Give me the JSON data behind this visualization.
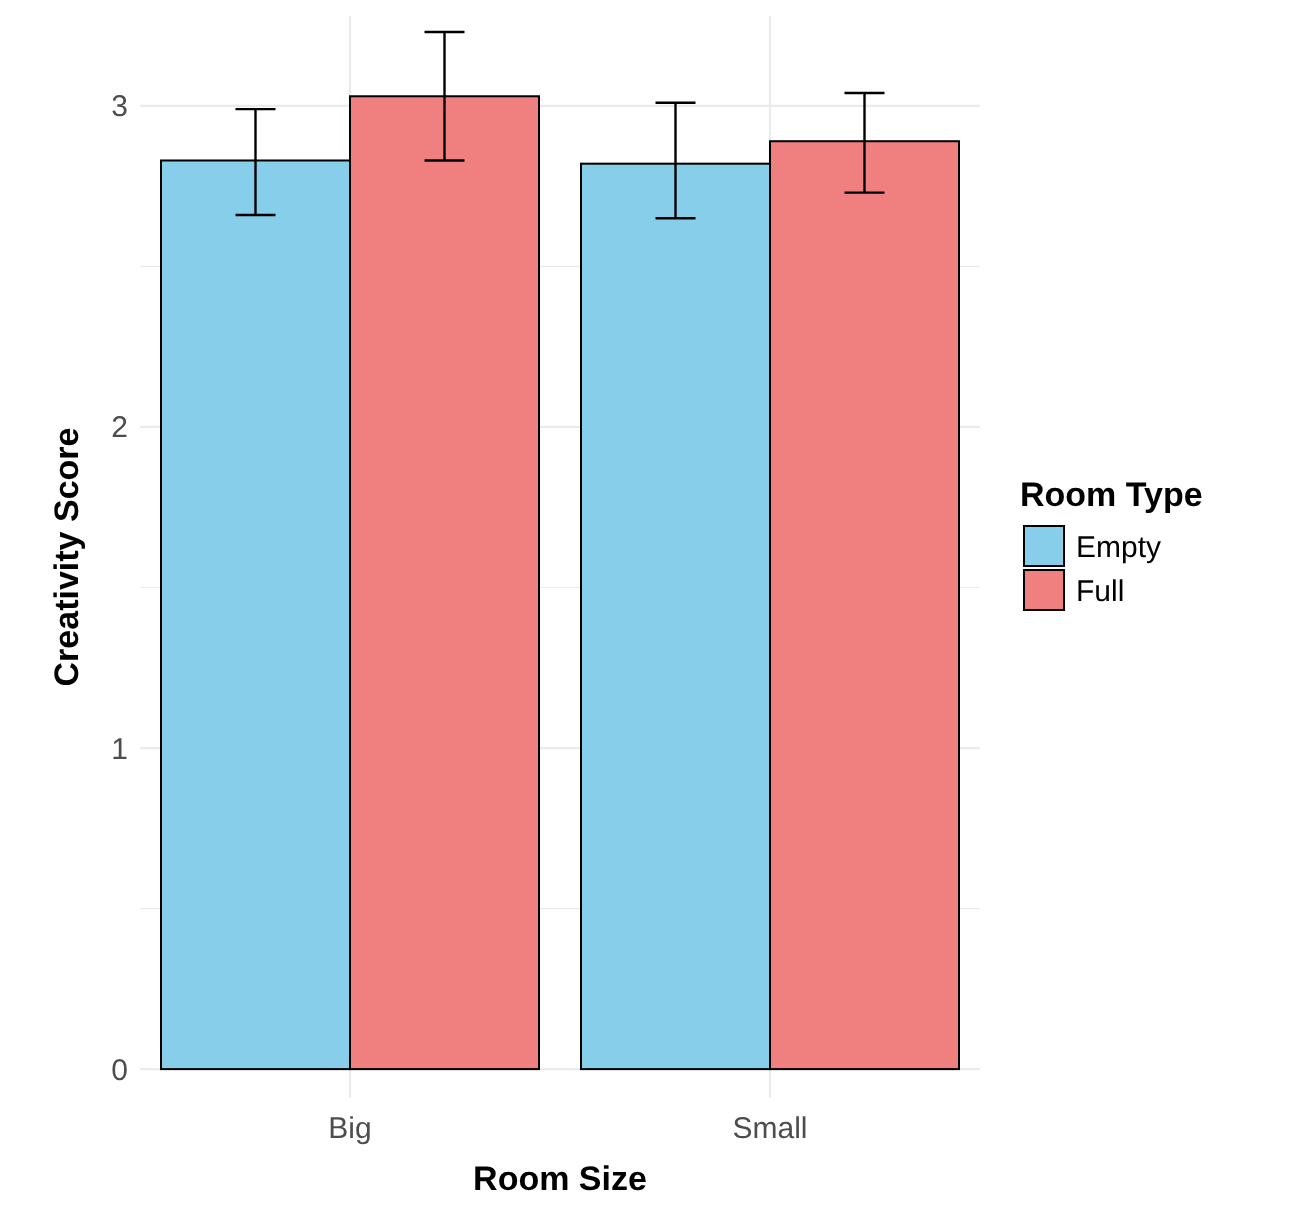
{
  "chart_data": {
    "type": "bar",
    "xlabel": "Room Size",
    "ylabel": "Creativity Score",
    "legend_title": "Room Type",
    "categories": [
      "Big",
      "Small"
    ],
    "series": [
      {
        "name": "Empty",
        "color": "#87ceeb",
        "values": [
          2.83,
          2.82
        ],
        "errors": [
          [
            2.66,
            2.99
          ],
          [
            2.65,
            3.01
          ]
        ]
      },
      {
        "name": "Full",
        "color": "#f08080",
        "values": [
          3.03,
          2.89
        ],
        "errors": [
          [
            2.83,
            3.23
          ],
          [
            2.73,
            3.04
          ]
        ]
      }
    ],
    "ylim": [
      -0.09,
      3.28
    ],
    "yticks": [
      0,
      {
        "value": 0.5,
        "label": null
      },
      1,
      {
        "value": 1.5,
        "label": null
      },
      2,
      {
        "value": 2.5,
        "label": null
      },
      3
    ],
    "grid": true,
    "legend": "right"
  }
}
